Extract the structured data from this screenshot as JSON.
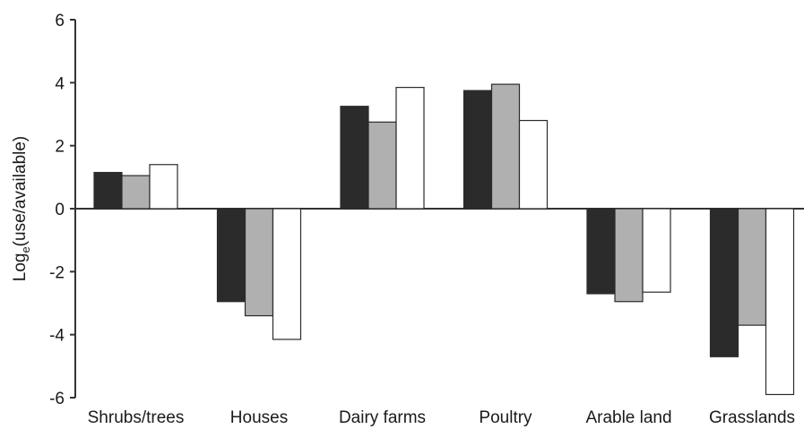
{
  "chart_data": {
    "type": "bar",
    "ylabel_main": "Log",
    "ylabel_sub": "e",
    "ylabel_rest": "(use/available)",
    "xlabel": "",
    "ylim": [
      -6,
      6
    ],
    "yticks": [
      "6",
      "4",
      "2",
      "0",
      "-2",
      "-4",
      "-6"
    ],
    "ytick_values": [
      6,
      4,
      2,
      0,
      -2,
      -4,
      -6
    ],
    "grid": false,
    "categories": [
      "Shrubs/trees",
      "Houses",
      "Dairy farms",
      "Poultry",
      "Arable land",
      "Grasslands"
    ],
    "series": [
      {
        "color": "#2b2b2b",
        "values": [
          1.15,
          -2.95,
          3.25,
          3.75,
          -2.7,
          -4.7
        ]
      },
      {
        "color": "#b0b0b0",
        "values": [
          1.05,
          -3.4,
          2.75,
          3.95,
          -2.95,
          -3.7
        ]
      },
      {
        "color": "#ffffff",
        "values": [
          1.4,
          -4.15,
          3.85,
          2.8,
          -2.65,
          -5.9
        ]
      }
    ]
  }
}
